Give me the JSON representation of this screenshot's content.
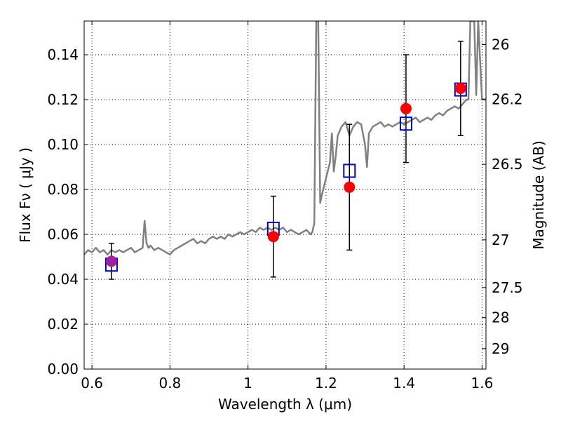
{
  "chart_data": {
    "type": "scatter",
    "xlabel": "Wavelength  λ (μm)",
    "ylabel": "Flux  Fν  ( μJy )",
    "ylabel_right": "Magnitude (AB)",
    "xlim": [
      0.58,
      1.61
    ],
    "ylim": [
      0.0,
      0.155
    ],
    "x_ticks": [
      0.6,
      0.8,
      1.0,
      1.2,
      1.4,
      1.6
    ],
    "x_tick_labels": [
      "0.6",
      "0.8",
      "1",
      "1.2",
      "1.4",
      "1.6"
    ],
    "y_ticks": [
      0.0,
      0.02,
      0.04,
      0.06,
      0.08,
      0.1,
      0.12,
      0.14
    ],
    "y_tick_labels": [
      "0.00",
      "0.02",
      "0.04",
      "0.06",
      "0.08",
      "0.10",
      "0.12",
      "0.14"
    ],
    "right_ticks": [
      26,
      26.2,
      26.5,
      27,
      27.5,
      28,
      29
    ],
    "right_tick_labels": [
      "26",
      "26.2",
      "26.5",
      "27",
      "27.5",
      "28",
      "29"
    ],
    "grid": true,
    "colors": {
      "spectrum": "#808080",
      "observed": "#ff0000",
      "model": "#0000cc",
      "overlap": "#a020a0",
      "errorbar": "#000000"
    },
    "series": [
      {
        "kind": "line",
        "x": [
          0.58,
          0.59,
          0.6,
          0.61,
          0.62,
          0.63,
          0.64,
          0.65,
          0.66,
          0.67,
          0.68,
          0.69,
          0.7,
          0.71,
          0.72,
          0.73,
          0.735,
          0.74,
          0.745,
          0.75,
          0.76,
          0.77,
          0.78,
          0.79,
          0.8,
          0.81,
          0.82,
          0.83,
          0.84,
          0.85,
          0.86,
          0.87,
          0.88,
          0.89,
          0.9,
          0.91,
          0.92,
          0.93,
          0.94,
          0.95,
          0.96,
          0.97,
          0.98,
          0.99,
          1.0,
          1.01,
          1.02,
          1.03,
          1.04,
          1.05,
          1.06,
          1.07,
          1.08,
          1.09,
          1.1,
          1.11,
          1.12,
          1.13,
          1.14,
          1.15,
          1.16,
          1.165,
          1.17,
          1.175,
          1.18,
          1.185,
          1.19,
          1.2,
          1.21,
          1.215,
          1.22,
          1.225,
          1.23,
          1.24,
          1.25,
          1.26,
          1.27,
          1.28,
          1.29,
          1.3,
          1.305,
          1.31,
          1.32,
          1.33,
          1.34,
          1.35,
          1.36,
          1.37,
          1.38,
          1.39,
          1.4,
          1.41,
          1.42,
          1.43,
          1.44,
          1.45,
          1.46,
          1.47,
          1.48,
          1.49,
          1.5,
          1.51,
          1.52,
          1.53,
          1.54,
          1.55,
          1.56,
          1.565,
          1.57,
          1.58,
          1.585,
          1.59,
          1.6,
          1.61
        ],
        "y": [
          0.051,
          0.053,
          0.052,
          0.054,
          0.052,
          0.053,
          0.051,
          0.053,
          0.052,
          0.053,
          0.052,
          0.053,
          0.054,
          0.052,
          0.053,
          0.054,
          0.066,
          0.056,
          0.054,
          0.055,
          0.053,
          0.054,
          0.053,
          0.052,
          0.051,
          0.053,
          0.054,
          0.055,
          0.056,
          0.057,
          0.058,
          0.056,
          0.057,
          0.056,
          0.058,
          0.059,
          0.058,
          0.059,
          0.058,
          0.06,
          0.059,
          0.06,
          0.061,
          0.06,
          0.061,
          0.062,
          0.061,
          0.063,
          0.062,
          0.063,
          0.062,
          0.063,
          0.062,
          0.063,
          0.061,
          0.062,
          0.061,
          0.06,
          0.061,
          0.062,
          0.06,
          0.061,
          0.065,
          0.155,
          0.155,
          0.074,
          0.078,
          0.085,
          0.092,
          0.105,
          0.088,
          0.095,
          0.104,
          0.108,
          0.11,
          0.104,
          0.108,
          0.11,
          0.109,
          0.1,
          0.09,
          0.105,
          0.108,
          0.109,
          0.11,
          0.108,
          0.109,
          0.108,
          0.109,
          0.11,
          0.109,
          0.11,
          0.111,
          0.112,
          0.11,
          0.111,
          0.112,
          0.111,
          0.113,
          0.114,
          0.113,
          0.115,
          0.116,
          0.117,
          0.116,
          0.118,
          0.12,
          0.12,
          0.155,
          0.155,
          0.122,
          0.155,
          0.12,
          0.12
        ],
        "clip_top": true
      },
      {
        "kind": "points",
        "marker": "circle",
        "x": [
          0.65,
          1.065,
          1.26,
          1.405,
          1.545
        ],
        "y": [
          0.048,
          0.059,
          0.081,
          0.116,
          0.125
        ],
        "yerr": [
          0.008,
          0.018,
          0.028,
          0.024,
          0.021
        ]
      },
      {
        "kind": "points",
        "marker": "square",
        "x": [
          0.65,
          1.065,
          1.26,
          1.405,
          1.545
        ],
        "y": [
          0.0465,
          0.0625,
          0.0883,
          0.1093,
          0.1245
        ]
      }
    ]
  }
}
